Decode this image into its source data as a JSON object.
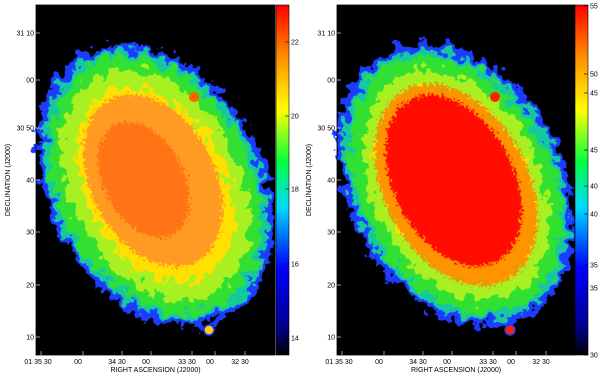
{
  "panels": [
    {
      "y_axis_label": "DECLINATION (J2000)",
      "x_axis_label": "RIGHT ASCENSION (J2000)",
      "y_tick_labels": [
        "31 10",
        "00",
        "30 50",
        "40",
        "30",
        "20",
        "10"
      ],
      "x_tick_labels": [
        "01 35 30",
        "00",
        "34 30",
        "00",
        "33 30",
        "00",
        "32 30"
      ],
      "colorbar_labels": [
        "22",
        "20",
        "18",
        "16",
        "14"
      ]
    },
    {
      "y_axis_label": "DECLINATION (J2000)",
      "x_axis_label": "RIGHT ASCENSION (J2000)",
      "y_tick_labels": [
        "31 10",
        "00",
        "30 50",
        "40",
        "30",
        "20",
        "10"
      ],
      "x_tick_labels": [
        "01 35 30",
        "00",
        "34 30",
        "00",
        "33 30",
        "00",
        "32 30"
      ],
      "colorbar_labels": [
        "55",
        "50",
        "45",
        "45",
        "40",
        "40",
        "35",
        "35",
        "30"
      ]
    }
  ]
}
